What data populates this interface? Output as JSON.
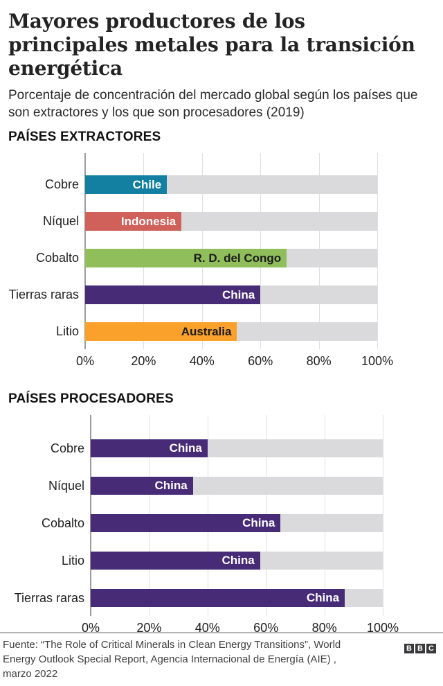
{
  "header": {
    "title": "Mayores productores de los principales metales para la transición energética",
    "subtitle": "Porcentaje de concentración del mercado global según los países que son extractores y los que son procesadores (2019)"
  },
  "chart_data": [
    {
      "type": "bar",
      "title": "PAÍSES EXTRACTORES",
      "orientation": "horizontal",
      "unit": "%",
      "xlim": [
        0,
        100
      ],
      "ticks": [
        "0%",
        "20%",
        "40%",
        "60%",
        "80%",
        "100%"
      ],
      "grid": true,
      "rows": [
        {
          "category": "Cobre",
          "label": "Chile",
          "value": 28,
          "color": "#1380a1",
          "label_color": "#ffffff"
        },
        {
          "category": "Níquel",
          "label": "Indonesia",
          "value": 33,
          "color": "#d0605a",
          "label_color": "#ffffff"
        },
        {
          "category": "Cobalto",
          "label": "R. D. del Congo",
          "value": 69,
          "color": "#8fbe5b",
          "label_color": "#1b1b1b"
        },
        {
          "category": "Tierras raras",
          "label": "China",
          "value": 60,
          "color": "#472b77",
          "label_color": "#ffffff"
        },
        {
          "category": "Litio",
          "label": "Australia",
          "value": 52,
          "color": "#f9a12b",
          "label_color": "#1b1b1b"
        }
      ]
    },
    {
      "type": "bar",
      "title": "PAÍSES PROCESADORES",
      "orientation": "horizontal",
      "unit": "%",
      "xlim": [
        0,
        100
      ],
      "ticks": [
        "0%",
        "20%",
        "40%",
        "60%",
        "80%",
        "100%"
      ],
      "grid": true,
      "rows": [
        {
          "category": "Cobre",
          "label": "China",
          "value": 40,
          "color": "#472b77",
          "label_color": "#ffffff"
        },
        {
          "category": "Níquel",
          "label": "China",
          "value": 35,
          "color": "#472b77",
          "label_color": "#ffffff"
        },
        {
          "category": "Cobalto",
          "label": "China",
          "value": 65,
          "color": "#472b77",
          "label_color": "#ffffff"
        },
        {
          "category": "Litio",
          "label": "China",
          "value": 58,
          "color": "#472b77",
          "label_color": "#ffffff"
        },
        {
          "category": "Tierras raras",
          "label": "China",
          "value": 87,
          "color": "#472b77",
          "label_color": "#ffffff"
        }
      ]
    }
  ],
  "colors": {
    "track": "#dadadd",
    "gridline": "#e0e0e4",
    "axis_line": "#9b9ba0",
    "logo": "#3a3a3c"
  },
  "footer": {
    "source": "Fuente: “The Role of Critical Minerals in Clean Energy Transitions”, World Energy Outlook Special Report, Agencia Internacional de Energía (AIE) , marzo 2022",
    "logo_letters": [
      "B",
      "B",
      "C"
    ]
  }
}
